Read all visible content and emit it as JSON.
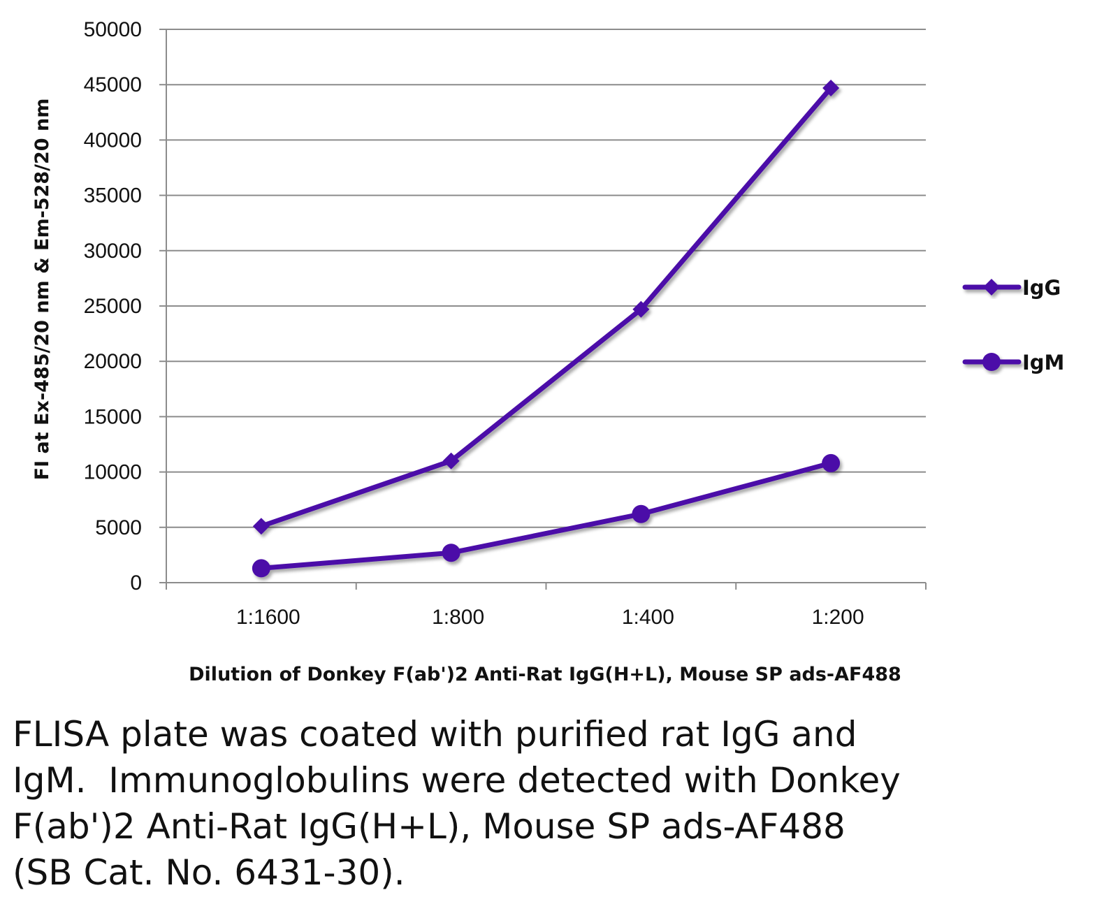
{
  "chart_data": {
    "type": "line",
    "title": "",
    "xlabel": "Dilution of Donkey F(ab')2 Anti-Rat IgG(H+L), Mouse SP ads-AF488",
    "ylabel": "FI at Ex-485/20 nm & Em-528/20 nm",
    "categories": [
      "1:1600",
      "1:800",
      "1:400",
      "1:200"
    ],
    "ylim": [
      0,
      50000
    ],
    "yticks": [
      "0",
      "5000",
      "10000",
      "15000",
      "20000",
      "25000",
      "30000",
      "35000",
      "40000",
      "45000",
      "50000"
    ],
    "grid": true,
    "legend_position": "right",
    "series": [
      {
        "name": "IgG",
        "marker": "diamond",
        "color": "#4b0fa8",
        "values": [
          5100,
          11000,
          24700,
          44700
        ]
      },
      {
        "name": "IgM",
        "marker": "circle",
        "color": "#4b0fa8",
        "values": [
          1300,
          2700,
          6200,
          10800
        ]
      }
    ]
  },
  "caption": {
    "lines": [
      "FLISA plate was coated with purified rat IgG and",
      "IgM.  Immunoglobulins were detected with Donkey",
      "F(ab')2 Anti-Rat IgG(H+L), Mouse SP ads-AF488",
      "(SB Cat. No. 6431-30)."
    ]
  }
}
